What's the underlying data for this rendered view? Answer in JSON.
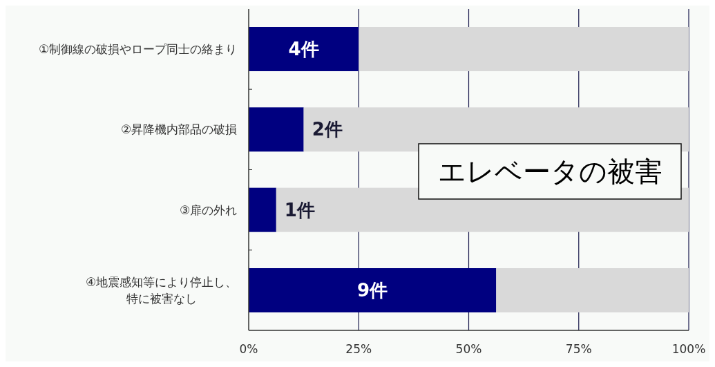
{
  "chart_data": {
    "type": "bar",
    "orientation": "horizontal",
    "stacked": true,
    "title": "エレベータの被害",
    "categories": [
      "①制御線の破損やロープ同士の絡まり",
      "②昇降機内部品の破損",
      "③扉の外れ",
      "④地震感知等により停止し、特に被害なし"
    ],
    "series": [
      {
        "color": "#000080",
        "values": [
          25,
          12.5,
          6.25,
          56.25
        ]
      },
      {
        "color": "#d9d9d9",
        "values": [
          75,
          87.5,
          93.75,
          43.75
        ]
      }
    ],
    "xlim": [
      0,
      100
    ],
    "xticks": [
      {
        "value": 0,
        "label": "0%"
      },
      {
        "value": 25,
        "label": "25%"
      },
      {
        "value": 50,
        "label": "50%"
      },
      {
        "value": 75,
        "label": "75%"
      },
      {
        "value": 100,
        "label": "100%"
      }
    ],
    "grid": "x",
    "annotations": [
      "4件",
      "2件",
      "1件",
      "9件"
    ]
  }
}
